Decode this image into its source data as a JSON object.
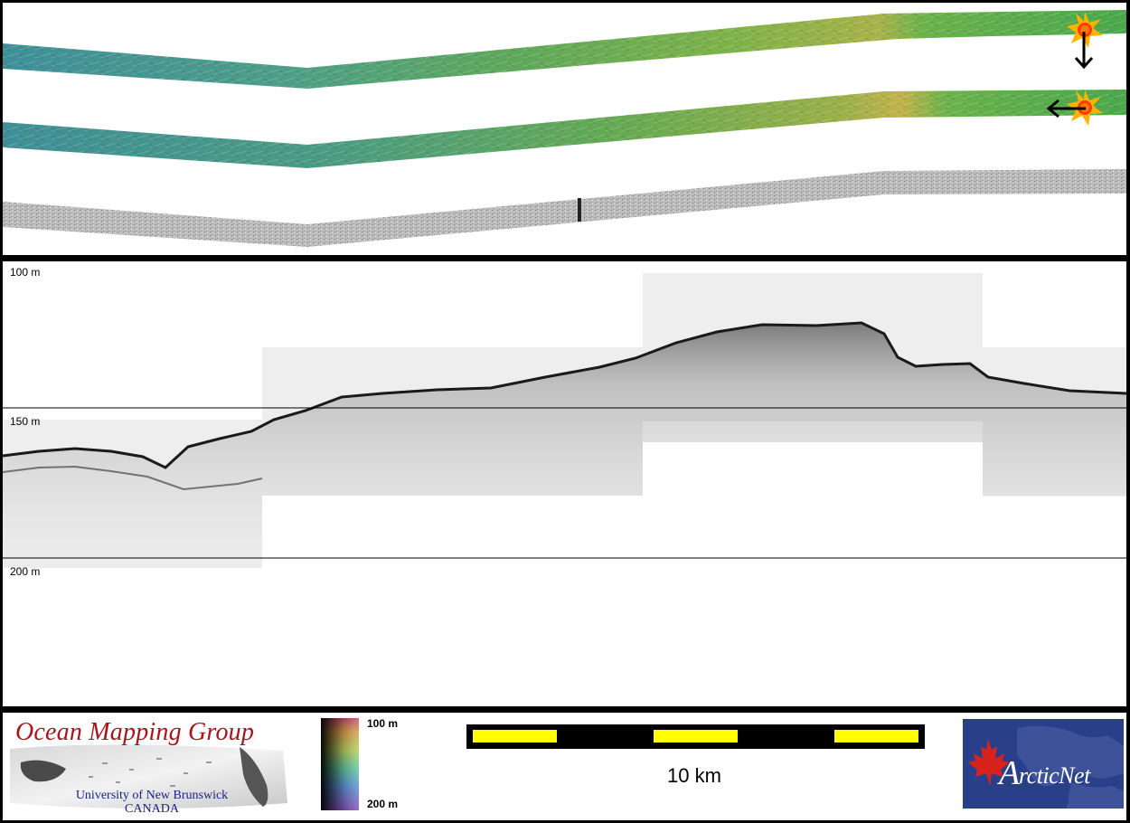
{
  "profile": {
    "depth_labels": [
      "100 m",
      "150 m",
      "200 m"
    ]
  },
  "footer": {
    "omg_logo": {
      "title": "Ocean Mapping Group",
      "subtitle_line1": "University of New Brunswick",
      "subtitle_line2": "CANADA"
    },
    "colorbar": {
      "top_label": "100 m",
      "bottom_label": "200 m"
    },
    "scale_bar": {
      "label": "10 km",
      "colors": {
        "frame": "#000000",
        "fill": "#ffff00"
      }
    },
    "arcticnet_logo": {
      "text": "ArcticNet"
    }
  },
  "icons": {
    "sun_illumination_top": "sun-icon",
    "sun_illumination_bottom": "sun-icon",
    "arrow_down": "arrow-down-icon",
    "arrow_left": "arrow-left-icon"
  },
  "colors": {
    "background": "#000000",
    "panel": "#ffffff",
    "omg_title": "#a8141c",
    "omg_subtitle": "#1a237e",
    "arcticnet_bg": "#2a3f8a",
    "maple_leaf": "#d8221c"
  }
}
